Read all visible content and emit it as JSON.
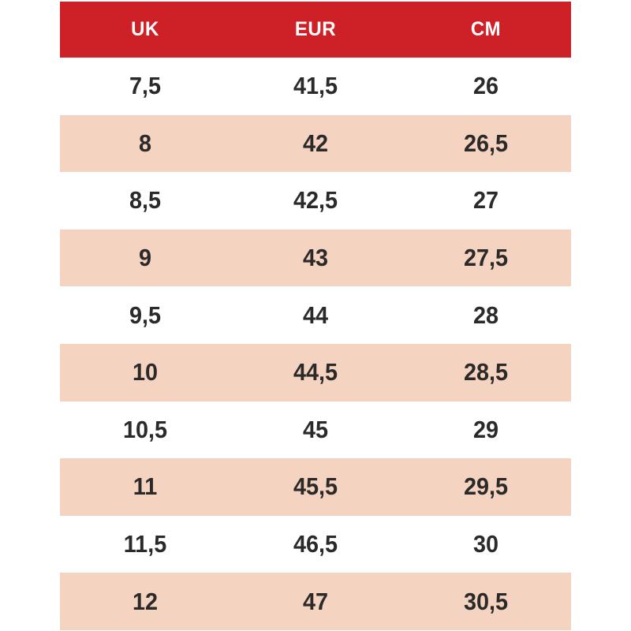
{
  "page": {
    "background_color": "#ffffff"
  },
  "chart_data": {
    "type": "table",
    "columns": [
      "UK",
      "EUR",
      "CM"
    ],
    "rows": [
      [
        "7,5",
        "41,5",
        "26"
      ],
      [
        "8",
        "42",
        "26,5"
      ],
      [
        "8,5",
        "42,5",
        "27"
      ],
      [
        "9",
        "43",
        "27,5"
      ],
      [
        "9,5",
        "44",
        "28"
      ],
      [
        "10",
        "44,5",
        "28,5"
      ],
      [
        "10,5",
        "45",
        "29"
      ],
      [
        "11",
        "45,5",
        "29,5"
      ],
      [
        "11,5",
        "46,5",
        "30"
      ],
      [
        "12",
        "47",
        "30,5"
      ]
    ],
    "layout": {
      "header_background": "#ce2127",
      "header_text_color": "#ffffff",
      "cell_text_color": "#2b2a29",
      "row_stripe_even": "#ffffff",
      "row_stripe_odd": "#f5d3c1",
      "columns_equal_width": true,
      "text_align": "center"
    }
  }
}
